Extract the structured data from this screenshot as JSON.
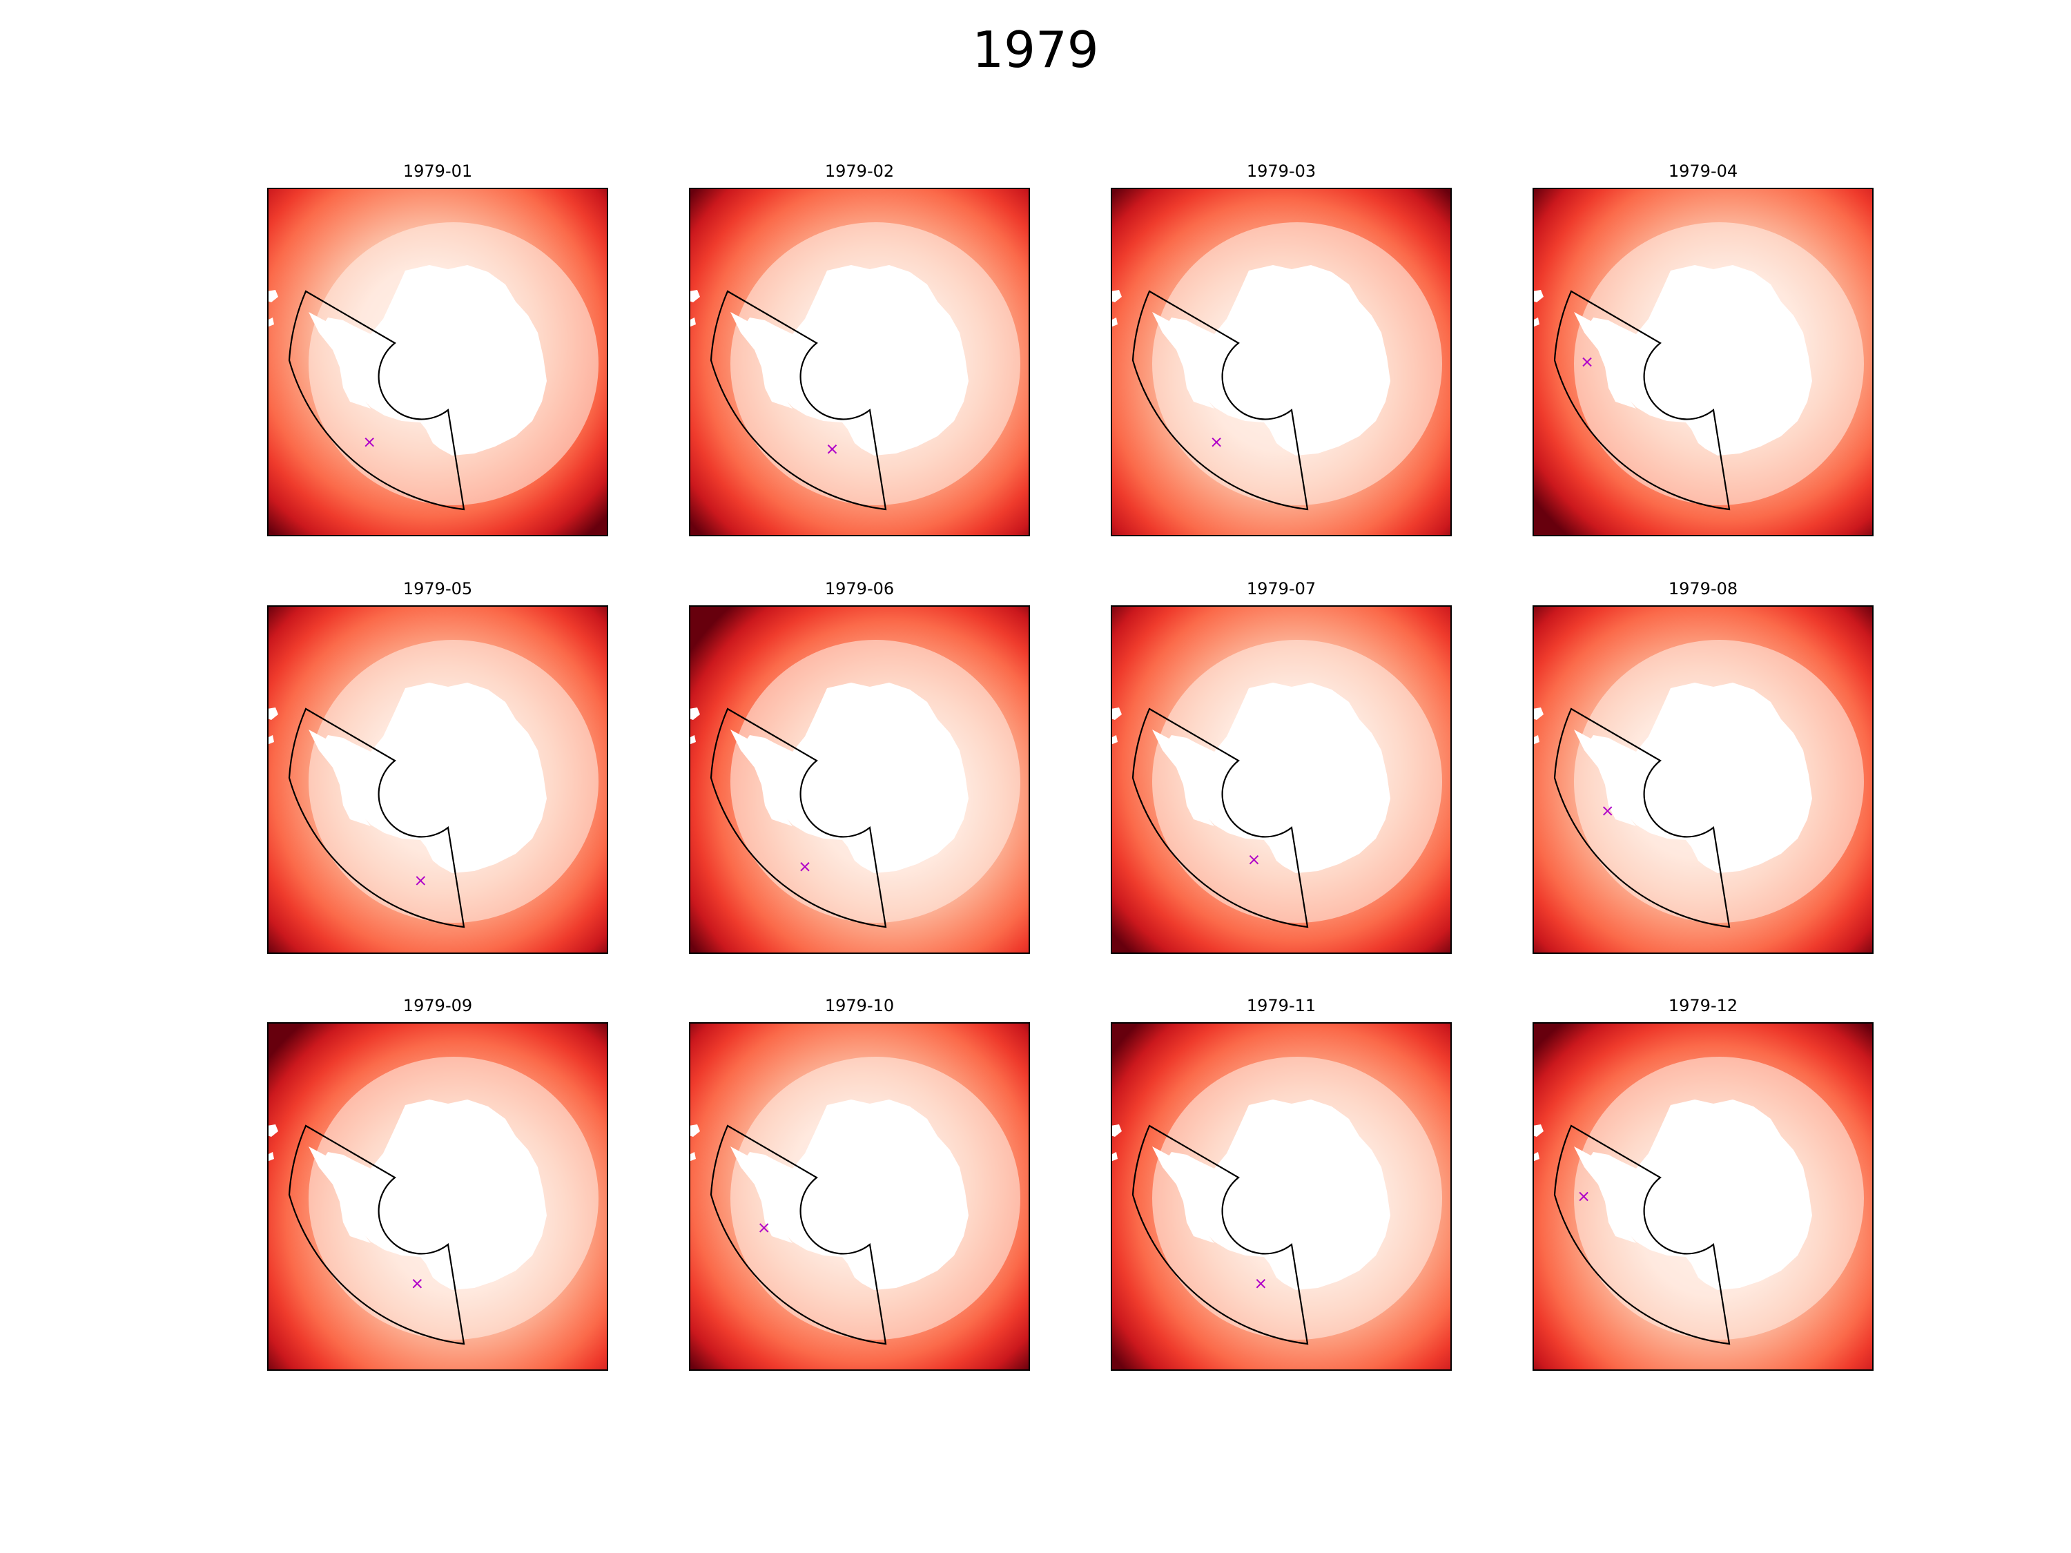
{
  "figure": {
    "title": "1979"
  },
  "chart_data": {
    "type": "heatmap",
    "title": "1979",
    "projection": "south polar stereographic",
    "colormap": "Reds",
    "colors": {
      "marker": "#b000c8",
      "outline": "#000000",
      "land": "#ffffff"
    },
    "grid": false,
    "legend": "none",
    "panels": [
      {
        "title": "1979-01",
        "marker": {
          "col": 0.3,
          "row": 0.73
        }
      },
      {
        "title": "1979-02",
        "marker": {
          "col": 0.42,
          "row": 0.75
        }
      },
      {
        "title": "1979-03",
        "marker": {
          "col": 0.31,
          "row": 0.73
        }
      },
      {
        "title": "1979-04",
        "marker": {
          "col": 0.16,
          "row": 0.5
        }
      },
      {
        "title": "1979-05",
        "marker": {
          "col": 0.45,
          "row": 0.79
        }
      },
      {
        "title": "1979-06",
        "marker": {
          "col": 0.34,
          "row": 0.75
        }
      },
      {
        "title": "1979-07",
        "marker": {
          "col": 0.42,
          "row": 0.73
        }
      },
      {
        "title": "1979-08",
        "marker": {
          "col": 0.22,
          "row": 0.59
        }
      },
      {
        "title": "1979-09",
        "marker": {
          "col": 0.44,
          "row": 0.75
        }
      },
      {
        "title": "1979-10",
        "marker": {
          "col": 0.22,
          "row": 0.59
        }
      },
      {
        "title": "1979-11",
        "marker": {
          "col": 0.44,
          "row": 0.75
        }
      },
      {
        "title": "1979-12",
        "marker": {
          "col": 0.15,
          "row": 0.5
        }
      }
    ]
  }
}
